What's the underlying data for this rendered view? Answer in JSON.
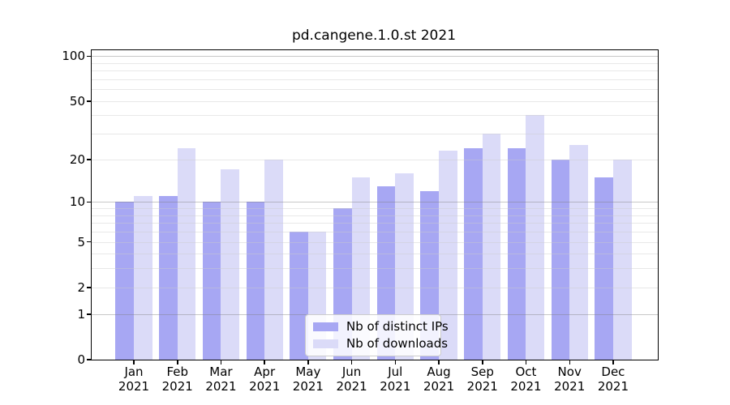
{
  "title": "pd.cangene.1.0.st 2021",
  "colors": {
    "distinct_ips": "#a7a7f3",
    "downloads": "#dbdbf8",
    "grid_minor": "#ececec",
    "grid_major": "#c6c6c6",
    "axis": "#000000",
    "legend_border": "#cccccc"
  },
  "legend": {
    "items": [
      {
        "label": "Nb of distinct IPs",
        "color_key": "distinct_ips"
      },
      {
        "label": "Nb of downloads",
        "color_key": "downloads"
      }
    ]
  },
  "chart_data": {
    "type": "bar",
    "title": "pd.cangene.1.0.st 2021",
    "categories": [
      "Jan",
      "Feb",
      "Mar",
      "Apr",
      "May",
      "Jun",
      "Jul",
      "Aug",
      "Sep",
      "Oct",
      "Nov",
      "Dec"
    ],
    "x_year": "2021",
    "series": [
      {
        "name": "Nb of distinct IPs",
        "values": [
          10,
          11,
          10,
          10,
          6,
          9,
          13,
          12,
          24,
          24,
          20,
          15
        ]
      },
      {
        "name": "Nb of downloads",
        "values": [
          11,
          24,
          17,
          20,
          6,
          15,
          16,
          23,
          30,
          40,
          25,
          20
        ]
      }
    ],
    "xlabel": "",
    "ylabel": "",
    "y_scale": "log1p",
    "ylim": [
      0,
      110
    ],
    "y_ticks": [
      0,
      1,
      2,
      5,
      10,
      20,
      50,
      100
    ],
    "gridlines": {
      "major": [
        1,
        10,
        100
      ],
      "minor": [
        2,
        3,
        4,
        5,
        6,
        7,
        8,
        9,
        20,
        30,
        40,
        50,
        60,
        70,
        80,
        90
      ]
    },
    "grid": "horizontal",
    "legend_position": "bottom-center-inside"
  }
}
